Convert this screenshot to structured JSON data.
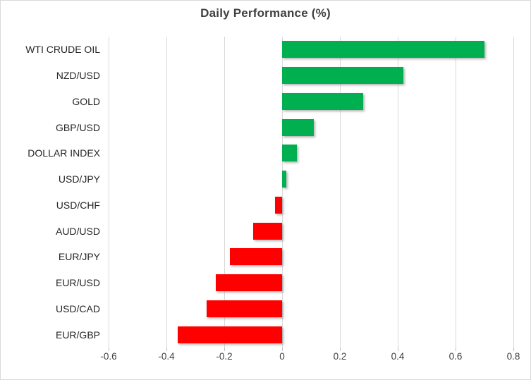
{
  "chart": {
    "title": "Daily Performance (%)",
    "colors": {
      "positive": "#00B050",
      "negative": "#FF0000",
      "gridline": "#D9D9D9",
      "border": "#D9D9D9",
      "background": "#FFFFFF",
      "title_text": "#404040",
      "category_text": "#262626",
      "axis_text": "#404040"
    }
  },
  "chart_data": {
    "type": "bar",
    "orientation": "horizontal",
    "title": "Daily Performance (%)",
    "categories": [
      "WTI CRUDE OIL",
      "NZD/USD",
      "GOLD",
      "GBP/USD",
      "DOLLAR INDEX",
      "USD/JPY",
      "USD/CHF",
      "AUD/USD",
      "EUR/JPY",
      "EUR/USD",
      "USD/CAD",
      "EUR/GBP"
    ],
    "values": [
      0.7,
      0.42,
      0.28,
      0.11,
      0.05,
      0.015,
      -0.025,
      -0.1,
      -0.18,
      -0.23,
      -0.26,
      -0.36
    ],
    "xlabel": "",
    "ylabel": "",
    "xlim": [
      -0.6,
      0.8
    ],
    "xticks": [
      -0.6,
      -0.4,
      -0.2,
      0,
      0.2,
      0.4,
      0.6,
      0.8
    ],
    "xtick_labels": [
      "-0.6",
      "-0.4",
      "-0.2",
      "0",
      "0.2",
      "0.4",
      "0.6",
      "0.8"
    ],
    "grid": true,
    "legend": false,
    "positive_color": "#00B050",
    "negative_color": "#FF0000"
  }
}
